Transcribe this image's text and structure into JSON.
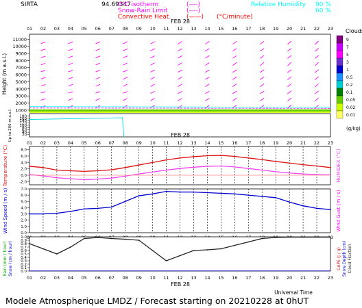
{
  "header": {
    "station": "SIRTA",
    "coords": "94.69347",
    "legend_top": [
      {
        "label": "0°C isotherm",
        "sym": "(----)",
        "color": "#ff00ff"
      },
      {
        "label": "Snow-Rain Limit",
        "sym": "(----)",
        "color": "#ff00ff"
      },
      {
        "label": "Convective Heat.",
        "sym": "(——)",
        "color": "#ff0000",
        "unit": "(°C/minute)"
      }
    ],
    "humidity_legend": {
      "label": "Relative Humidity",
      "v1": "90 %",
      "v2": "60 %",
      "color": "#00ffff"
    }
  },
  "date_label": "FEB 28",
  "hours": [
    "01",
    "02",
    "03",
    "04",
    "05",
    "06",
    "07",
    "08",
    "09",
    "10",
    "11",
    "12",
    "13",
    "14",
    "15",
    "16",
    "17",
    "18",
    "19",
    "20",
    "21",
    "22",
    "23"
  ],
  "colorbar": {
    "title": "Clouds",
    "unit": "(g/kg)",
    "levels": [
      "9",
      "7",
      "5",
      "3",
      "1",
      "0.5",
      "0.2",
      "0.1",
      "0.05",
      "0.02",
      "0.01"
    ],
    "colors": [
      "#800080",
      "#cc00ff",
      "#ff00ff",
      "#6b2fcf",
      "#0000cd",
      "#1e90ff",
      "#00ced1",
      "#008000",
      "#66cc00",
      "#ccff00",
      "#ffff66"
    ]
  },
  "footer": {
    "universal_time": "Universal Time",
    "title": "Modele Atmospherique LMDZ / Forecast starting on 20210228 at 0hUT"
  },
  "chart_data": [
    {
      "type": "heatmap",
      "name": "height-wind",
      "ylabel": "Height (m a.s.l.)",
      "yticks": [
        1000,
        2000,
        3000,
        4000,
        5000,
        6000,
        7000,
        8000,
        9000,
        10000,
        11000
      ],
      "ylim": [
        700,
        11700
      ],
      "lower_ylabel": "Up to 200 m a.s.l.",
      "lower_yticks": [
        20,
        40,
        60,
        80,
        100,
        120,
        140,
        160,
        180
      ],
      "lower_ylim": [
        0,
        200
      ]
    },
    {
      "type": "line",
      "name": "temperature-humidex",
      "ylabel": "Temperature (°C)",
      "ylabel2": "HUMIDEX (°C)",
      "yticks": [
        -2.0,
        0.0,
        2.0,
        4.0,
        6.0,
        8.0
      ],
      "ylim": [
        -3,
        9
      ],
      "series": [
        {
          "name": "Temperature",
          "color": "#dd1111",
          "values": [
            2.8,
            2.4,
            1.6,
            1.4,
            1.2,
            1.4,
            1.7,
            2.4,
            3.2,
            4.0,
            4.8,
            5.4,
            5.8,
            6.1,
            6.2,
            5.9,
            5.4,
            4.9,
            4.3,
            3.8,
            3.3,
            2.9,
            2.4
          ]
        },
        {
          "name": "Humidex",
          "color": "#ee44ee",
          "values": [
            0.2,
            -0.2,
            -0.8,
            -1.1,
            -1.4,
            -1.2,
            -0.9,
            -0.3,
            0.4,
            1.0,
            1.6,
            2.1,
            2.5,
            2.8,
            2.9,
            2.6,
            2.1,
            1.6,
            1.1,
            0.7,
            0.4,
            0.2,
            0.1
          ]
        }
      ]
    },
    {
      "type": "line",
      "name": "wind-speed",
      "ylabel": "Wind Speed (m / s)",
      "ylabel2": "Wind Gust (m / s)",
      "yticks": [
        0.0,
        1.0,
        2.0,
        3.0,
        4.0,
        5.0,
        6.0,
        7.0
      ],
      "ylim": [
        0,
        7
      ],
      "series": [
        {
          "name": "Wind Speed",
          "color": "#0000cc",
          "values": [
            3.0,
            3.0,
            3.1,
            3.4,
            3.8,
            3.9,
            4.1,
            5.0,
            5.9,
            6.2,
            6.6,
            6.5,
            6.5,
            6.4,
            6.3,
            6.2,
            6.0,
            5.8,
            5.6,
            4.9,
            4.3,
            3.9,
            3.7
          ]
        }
      ]
    },
    {
      "type": "line",
      "name": "rain-cloud",
      "ylabel": "Rain (mm / hour)",
      "ylabel_b": "Snow (cm / hour)",
      "ylabel2": "CAPE (J / g)",
      "ylabel2_b": "Snow Depth (cm)",
      "ylabel2_c": "Cloud Fraction",
      "yticks": [
        0.0,
        0.1,
        0.2,
        0.3,
        0.4,
        0.5,
        0.6,
        0.7,
        0.8,
        0.9,
        1.0
      ],
      "ylim": [
        0,
        1.0
      ],
      "series": [
        {
          "name": "Cloud Fraction",
          "color": "#222222",
          "values": [
            0.8,
            0.65,
            0.5,
            0.7,
            0.95,
            0.98,
            0.95,
            0.93,
            0.9,
            0.6,
            0.3,
            0.45,
            0.6,
            0.62,
            0.65,
            0.75,
            0.85,
            0.95,
            0.98,
            0.99,
            0.99,
            0.99,
            0.99
          ]
        }
      ]
    }
  ]
}
